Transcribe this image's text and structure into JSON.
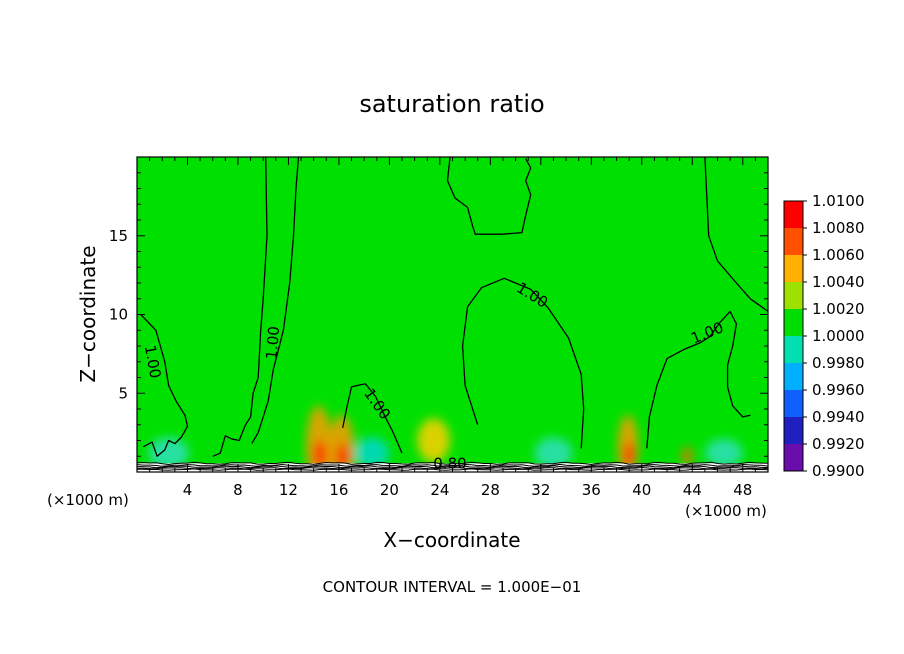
{
  "chart_data": {
    "type": "heatmap",
    "title": "saturation ratio",
    "xlabel": "X−coordinate",
    "ylabel": "Z−coordinate",
    "x_unit": "(×1000 m)",
    "y_unit": "(×1000 m)",
    "xlim": [
      0,
      50
    ],
    "ylim": [
      0,
      20
    ],
    "xticks": [
      4,
      8,
      12,
      16,
      20,
      24,
      28,
      32,
      36,
      40,
      44,
      48
    ],
    "yticks": [
      5,
      10,
      15
    ],
    "footer": "CONTOUR INTERVAL =  1.000E−01",
    "colorbar": {
      "levels": [
        "0.9900",
        "0.9920",
        "0.9940",
        "0.9960",
        "0.9980",
        "1.0000",
        "1.0020",
        "1.0040",
        "1.0060",
        "1.0080",
        "1.0100"
      ],
      "colors": [
        "#6a0dad",
        "#2020c0",
        "#1060ff",
        "#00b0ff",
        "#00e0b0",
        "#00dd00",
        "#9ee000",
        "#ffb000",
        "#ff5000",
        "#ff0000",
        "#ff9090"
      ]
    },
    "background_color": "#00e000",
    "contour_labels": [
      {
        "text": "1.00",
        "x": 1.2,
        "z": 7.0,
        "angle": 80
      },
      {
        "text": "1.00",
        "x": 10.8,
        "z": 8.2,
        "angle": -85
      },
      {
        "text": "1.00",
        "x": 19.0,
        "z": 4.3,
        "angle": 55
      },
      {
        "text": "1.00",
        "x": 31.3,
        "z": 11.2,
        "angle": 32
      },
      {
        "text": "1.00",
        "x": 45.2,
        "z": 8.8,
        "angle": -22
      },
      {
        "text": "0.80",
        "x": 24.8,
        "z": 0.5,
        "angle": 0
      }
    ],
    "contours": [
      [
        [
          10.2,
          20
        ],
        [
          10.3,
          15
        ],
        [
          10.0,
          11
        ],
        [
          9.8,
          9
        ],
        [
          9.6,
          6.0
        ],
        [
          9.2,
          5.0
        ],
        [
          9.0,
          3.5
        ],
        [
          8.6,
          3.0
        ],
        [
          8.1,
          2.0
        ],
        [
          7.5,
          2.1
        ],
        [
          7.0,
          2.3
        ],
        [
          6.6,
          1.2
        ],
        [
          6.0,
          1.0
        ]
      ],
      [
        [
          12.8,
          20
        ],
        [
          12.6,
          18
        ],
        [
          12.4,
          15
        ],
        [
          12.1,
          12
        ],
        [
          11.6,
          9
        ],
        [
          10.8,
          6.5
        ],
        [
          10.4,
          4.5
        ],
        [
          10.0,
          3.5
        ],
        [
          9.6,
          2.5
        ],
        [
          9.1,
          1.8
        ]
      ],
      [
        [
          0.3,
          10.0
        ],
        [
          1.5,
          9.0
        ],
        [
          2.2,
          7.0
        ],
        [
          2.5,
          5.5
        ],
        [
          3.1,
          4.5
        ],
        [
          3.8,
          3.6
        ],
        [
          4.0,
          2.9
        ],
        [
          3.5,
          2.2
        ],
        [
          3.0,
          1.8
        ],
        [
          2.5,
          2.0
        ],
        [
          2.2,
          1.4
        ],
        [
          1.6,
          1.0
        ],
        [
          1.2,
          1.9
        ],
        [
          0.5,
          1.6
        ]
      ],
      [
        [
          24.8,
          20
        ],
        [
          24.6,
          18.5
        ],
        [
          25.2,
          17.4
        ],
        [
          26.2,
          16.8
        ],
        [
          26.6,
          15.6
        ],
        [
          26.8,
          15.1
        ],
        [
          29.0,
          15.1
        ],
        [
          30.5,
          15.2
        ],
        [
          30.8,
          16.3
        ],
        [
          31.2,
          17.6
        ],
        [
          30.8,
          18.5
        ],
        [
          31.2,
          19.3
        ],
        [
          30.8,
          19.9
        ]
      ],
      [
        [
          27.0,
          3.0
        ],
        [
          26.0,
          5.5
        ],
        [
          25.8,
          8.0
        ],
        [
          26.2,
          10.5
        ],
        [
          27.3,
          11.7
        ],
        [
          29.1,
          12.3
        ],
        [
          31.2,
          11.6
        ],
        [
          32.6,
          10.4
        ],
        [
          34.2,
          8.5
        ],
        [
          35.2,
          6.2
        ],
        [
          35.4,
          4.0
        ],
        [
          35.2,
          1.5
        ]
      ],
      [
        [
          21.0,
          1.2
        ],
        [
          20.3,
          2.5
        ],
        [
          19.6,
          3.6
        ],
        [
          18.9,
          4.8
        ],
        [
          18.1,
          5.6
        ],
        [
          17.5,
          5.5
        ],
        [
          17.0,
          5.4
        ],
        [
          16.6,
          4.0
        ],
        [
          16.3,
          2.8
        ]
      ],
      [
        [
          40.4,
          1.5
        ],
        [
          40.6,
          3.5
        ],
        [
          41.2,
          5.5
        ],
        [
          42.0,
          7.2
        ],
        [
          43.4,
          7.8
        ],
        [
          44.6,
          8.2
        ],
        [
          45.4,
          8.6
        ],
        [
          46.2,
          9.5
        ],
        [
          47.0,
          10.2
        ],
        [
          47.5,
          9.4
        ],
        [
          47.2,
          8.0
        ],
        [
          46.8,
          6.8
        ],
        [
          46.8,
          5.4
        ],
        [
          47.2,
          4.2
        ],
        [
          48.0,
          3.5
        ],
        [
          48.6,
          3.6
        ]
      ],
      [
        [
          45.0,
          20
        ],
        [
          45.3,
          15
        ],
        [
          46.0,
          13.4
        ],
        [
          47.5,
          12.0
        ],
        [
          48.6,
          11.0
        ],
        [
          50.0,
          10.2
        ]
      ]
    ],
    "heat_spots": [
      {
        "x": 14.4,
        "z": 1.6,
        "rx": 1.0,
        "rz": 2.6,
        "color": "#ff9a00"
      },
      {
        "x": 16.2,
        "z": 1.4,
        "rx": 1.0,
        "rz": 2.2,
        "color": "#ff9a00"
      },
      {
        "x": 14.5,
        "z": 1.1,
        "rx": 0.5,
        "rz": 0.9,
        "color": "#ff2400"
      },
      {
        "x": 16.3,
        "z": 1.0,
        "rx": 0.5,
        "rz": 0.8,
        "color": "#ff2400"
      },
      {
        "x": 38.9,
        "z": 1.6,
        "rx": 0.8,
        "rz": 2.0,
        "color": "#ff9a00"
      },
      {
        "x": 39.0,
        "z": 1.1,
        "rx": 0.4,
        "rz": 0.8,
        "color": "#ff2400"
      },
      {
        "x": 43.6,
        "z": 1.0,
        "rx": 0.4,
        "rz": 0.6,
        "color": "#ff6a00"
      },
      {
        "x": 23.5,
        "z": 2.0,
        "rx": 1.3,
        "rz": 1.4,
        "color": "#ffd000"
      },
      {
        "x": 18.6,
        "z": 1.2,
        "rx": 1.4,
        "rz": 1.0,
        "color": "#00d8d0"
      },
      {
        "x": 2.5,
        "z": 1.2,
        "rx": 1.6,
        "rz": 1.0,
        "color": "#30e0c0"
      },
      {
        "x": 33.0,
        "z": 1.2,
        "rx": 1.5,
        "rz": 1.0,
        "color": "#30e0c0"
      },
      {
        "x": 46.5,
        "z": 1.2,
        "rx": 1.5,
        "rz": 0.9,
        "color": "#30e0c0"
      }
    ]
  }
}
